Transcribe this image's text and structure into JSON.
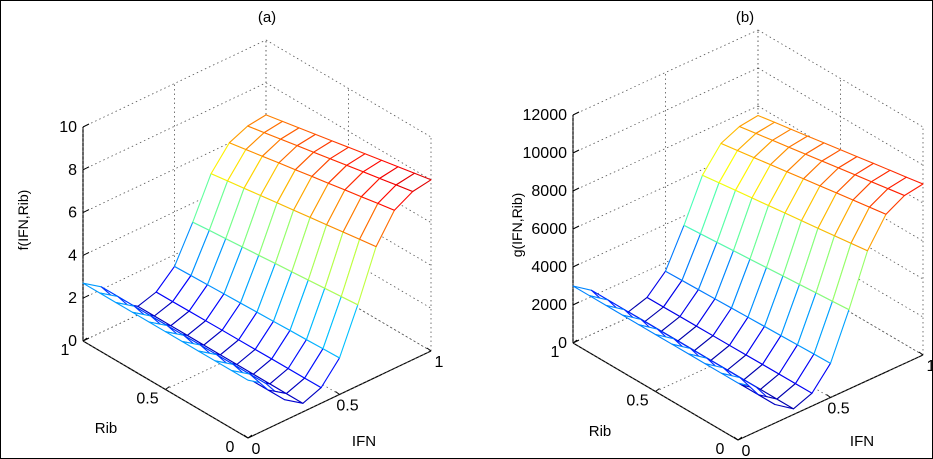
{
  "chart_data": [
    {
      "type": "surface",
      "title": "(a)",
      "xlabel": "IFN",
      "ylabel": "Rib",
      "zlabel": "f(IFN,Rib)",
      "xlim": [
        0,
        1
      ],
      "ylim": [
        0,
        1
      ],
      "zlim": [
        0,
        10
      ],
      "x_ticks": [
        "0",
        "0.5",
        "1"
      ],
      "y_ticks": [
        "0",
        "0.5",
        "1"
      ],
      "z_ticks": [
        "0",
        "2",
        "4",
        "6",
        "8",
        "10"
      ],
      "grid": true,
      "colormap": "jet",
      "mesh_size": 11,
      "x": [
        0,
        0.1,
        0.2,
        0.3,
        0.4,
        0.5,
        0.6,
        0.7,
        0.8,
        0.9,
        1
      ],
      "y": [
        0,
        0.1,
        0.2,
        0.3,
        0.4,
        0.5,
        0.6,
        0.7,
        0.8,
        0.9,
        1
      ],
      "z_corners": {
        "x0_y0": 2.7,
        "x0_y1": 2.7,
        "x1_y0": 8,
        "x1_y1": 6.5
      },
      "z_minimum": 0.4
    },
    {
      "type": "surface",
      "title": "(b)",
      "xlabel": "IFN",
      "ylabel": "Rib",
      "zlabel": "g(IFN,Rib)",
      "xlim": [
        0,
        1
      ],
      "ylim": [
        0,
        1
      ],
      "zlim": [
        0,
        12000
      ],
      "x_ticks": [
        "0",
        "0.5",
        "1"
      ],
      "y_ticks": [
        "0",
        "0.5",
        "1"
      ],
      "z_ticks": [
        "0",
        "2000",
        "4000",
        "6000",
        "8000",
        "10000",
        "12000"
      ],
      "grid": true,
      "colormap": "jet",
      "mesh_size": 11,
      "x": [
        0,
        0.1,
        0.2,
        0.3,
        0.4,
        0.5,
        0.6,
        0.7,
        0.8,
        0.9,
        1
      ],
      "y": [
        0,
        0.1,
        0.2,
        0.3,
        0.4,
        0.5,
        0.6,
        0.7,
        0.8,
        0.9,
        1
      ],
      "z_corners": {
        "x0_y0": 3000,
        "x0_y1": 3000,
        "x1_y0": 9000,
        "x1_y1": 7500
      },
      "z_minimum": 300
    }
  ]
}
